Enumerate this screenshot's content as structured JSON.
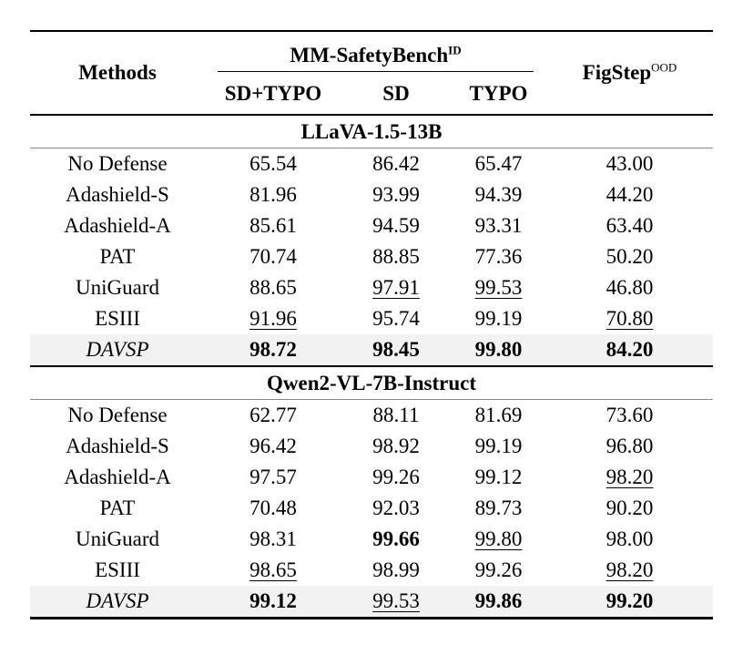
{
  "page": {
    "background": "#ffffff",
    "highlight_color": "#f2f2f2",
    "rule_color": "#000000",
    "thin_rule_color": "#888888"
  },
  "table": {
    "header": {
      "methods_label": "Methods",
      "group_label": "MM-SafetyBench",
      "group_superscript": "ID",
      "subcolumns": [
        "SD+TYPO",
        "SD",
        "TYPO"
      ],
      "figstep_label": "FigStep",
      "figstep_superscript": "OOD"
    },
    "sections": [
      {
        "title": "LLaVA-1.5-13B",
        "rows": [
          {
            "method": "No Defense",
            "italic": false,
            "highlight": false,
            "values": [
              {
                "v": "65.54",
                "s": "n"
              },
              {
                "v": "86.42",
                "s": "n"
              },
              {
                "v": "65.47",
                "s": "n"
              },
              {
                "v": "43.00",
                "s": "n"
              }
            ]
          },
          {
            "method": "Adashield-S",
            "italic": false,
            "highlight": false,
            "values": [
              {
                "v": "81.96",
                "s": "n"
              },
              {
                "v": "93.99",
                "s": "n"
              },
              {
                "v": "94.39",
                "s": "n"
              },
              {
                "v": "44.20",
                "s": "n"
              }
            ]
          },
          {
            "method": "Adashield-A",
            "italic": false,
            "highlight": false,
            "values": [
              {
                "v": "85.61",
                "s": "n"
              },
              {
                "v": "94.59",
                "s": "n"
              },
              {
                "v": "93.31",
                "s": "n"
              },
              {
                "v": "63.40",
                "s": "n"
              }
            ]
          },
          {
            "method": "PAT",
            "italic": false,
            "highlight": false,
            "values": [
              {
                "v": "70.74",
                "s": "n"
              },
              {
                "v": "88.85",
                "s": "n"
              },
              {
                "v": "77.36",
                "s": "n"
              },
              {
                "v": "50.20",
                "s": "n"
              }
            ]
          },
          {
            "method": "UniGuard",
            "italic": false,
            "highlight": false,
            "values": [
              {
                "v": "88.65",
                "s": "n"
              },
              {
                "v": "97.91",
                "s": "u"
              },
              {
                "v": "99.53",
                "s": "u"
              },
              {
                "v": "46.80",
                "s": "n"
              }
            ]
          },
          {
            "method": "ESIII",
            "italic": false,
            "highlight": false,
            "values": [
              {
                "v": "91.96",
                "s": "u"
              },
              {
                "v": "95.74",
                "s": "n"
              },
              {
                "v": "99.19",
                "s": "n"
              },
              {
                "v": "70.80",
                "s": "u"
              }
            ]
          },
          {
            "method": "DAVSP",
            "italic": true,
            "highlight": true,
            "values": [
              {
                "v": "98.72",
                "s": "b"
              },
              {
                "v": "98.45",
                "s": "b"
              },
              {
                "v": "99.80",
                "s": "b"
              },
              {
                "v": "84.20",
                "s": "b"
              }
            ]
          }
        ]
      },
      {
        "title": "Qwen2-VL-7B-Instruct",
        "rows": [
          {
            "method": "No Defense",
            "italic": false,
            "highlight": false,
            "values": [
              {
                "v": "62.77",
                "s": "n"
              },
              {
                "v": "88.11",
                "s": "n"
              },
              {
                "v": "81.69",
                "s": "n"
              },
              {
                "v": "73.60",
                "s": "n"
              }
            ]
          },
          {
            "method": "Adashield-S",
            "italic": false,
            "highlight": false,
            "values": [
              {
                "v": "96.42",
                "s": "n"
              },
              {
                "v": "98.92",
                "s": "n"
              },
              {
                "v": "99.19",
                "s": "n"
              },
              {
                "v": "96.80",
                "s": "n"
              }
            ]
          },
          {
            "method": "Adashield-A",
            "italic": false,
            "highlight": false,
            "values": [
              {
                "v": "97.57",
                "s": "n"
              },
              {
                "v": "99.26",
                "s": "n"
              },
              {
                "v": "99.12",
                "s": "n"
              },
              {
                "v": "98.20",
                "s": "u"
              }
            ]
          },
          {
            "method": "PAT",
            "italic": false,
            "highlight": false,
            "values": [
              {
                "v": "70.48",
                "s": "n"
              },
              {
                "v": "92.03",
                "s": "n"
              },
              {
                "v": "89.73",
                "s": "n"
              },
              {
                "v": "90.20",
                "s": "n"
              }
            ]
          },
          {
            "method": "UniGuard",
            "italic": false,
            "highlight": false,
            "values": [
              {
                "v": "98.31",
                "s": "n"
              },
              {
                "v": "99.66",
                "s": "b"
              },
              {
                "v": "99.80",
                "s": "u"
              },
              {
                "v": "98.00",
                "s": "n"
              }
            ]
          },
          {
            "method": "ESIII",
            "italic": false,
            "highlight": false,
            "values": [
              {
                "v": "98.65",
                "s": "u"
              },
              {
                "v": "98.99",
                "s": "n"
              },
              {
                "v": "99.26",
                "s": "n"
              },
              {
                "v": "98.20",
                "s": "u"
              }
            ]
          },
          {
            "method": "DAVSP",
            "italic": true,
            "highlight": true,
            "values": [
              {
                "v": "99.12",
                "s": "b"
              },
              {
                "v": "99.53",
                "s": "u"
              },
              {
                "v": "99.86",
                "s": "b"
              },
              {
                "v": "99.20",
                "s": "b"
              }
            ]
          }
        ]
      }
    ]
  }
}
